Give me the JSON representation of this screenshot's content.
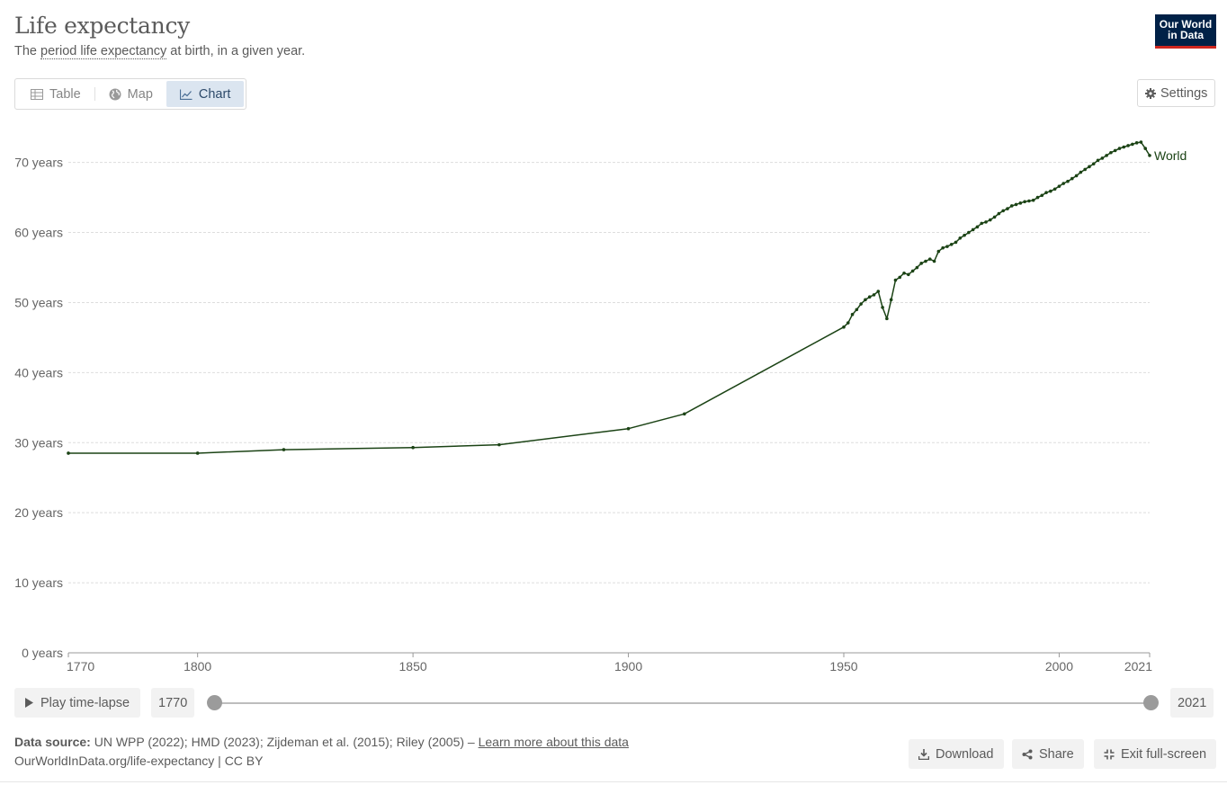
{
  "header": {
    "title": "Life expectancy",
    "subtitle_pre": "The ",
    "subtitle_link": "period life expectancy",
    "subtitle_post": " at birth, in a given year.",
    "logo_line1": "Our World",
    "logo_line2": "in Data"
  },
  "tabs": [
    {
      "label": "Table",
      "icon": "table-icon"
    },
    {
      "label": "Map",
      "icon": "globe-icon"
    },
    {
      "label": "Chart",
      "icon": "line-chart-icon",
      "active": true
    }
  ],
  "settings_label": "Settings",
  "timeline": {
    "play_label": "Play time-lapse",
    "start_year": "1770",
    "end_year": "2021",
    "start_position": 0,
    "end_position": 1
  },
  "footer": {
    "source_label": "Data source:",
    "source_text": " UN WPP (2022); HMD (2023); Zijdeman et al. (2015); Riley (2005) – ",
    "learn_more": "Learn more about this data",
    "url_license": "OurWorldInData.org/life-expectancy | CC BY"
  },
  "actions": {
    "download": "Download",
    "share": "Share",
    "exit_fullscreen": "Exit full-screen"
  },
  "colors": {
    "line": "#1b4315",
    "accent_blue": "#002147",
    "accent_red": "#ce261e",
    "tab_active_bg": "#dbe5f0",
    "grid": "#dddddd"
  },
  "chart_data": {
    "type": "line",
    "title": "Life expectancy",
    "ylim": [
      0,
      75
    ],
    "xlim": [
      1770,
      2021
    ],
    "y_ticks": [
      0,
      10,
      20,
      30,
      40,
      50,
      60,
      70
    ],
    "y_tick_labels": [
      "0 years",
      "10 years",
      "20 years",
      "30 years",
      "40 years",
      "50 years",
      "60 years",
      "70 years"
    ],
    "x_ticks": [
      1770,
      1800,
      1850,
      1900,
      1950,
      2000,
      2021
    ],
    "x_tick_labels": [
      "1770",
      "1800",
      "1850",
      "1900",
      "1950",
      "2000",
      "2021"
    ],
    "grid": true,
    "legend": "end-of-line label",
    "series": [
      {
        "name": "World",
        "x": [
          1770,
          1800,
          1820,
          1850,
          1870,
          1900,
          1913,
          1950,
          1951,
          1952,
          1953,
          1954,
          1955,
          1956,
          1957,
          1958,
          1959,
          1960,
          1961,
          1962,
          1963,
          1964,
          1965,
          1966,
          1967,
          1968,
          1969,
          1970,
          1971,
          1972,
          1973,
          1974,
          1975,
          1976,
          1977,
          1978,
          1979,
          1980,
          1981,
          1982,
          1983,
          1984,
          1985,
          1986,
          1987,
          1988,
          1989,
          1990,
          1991,
          1992,
          1993,
          1994,
          1995,
          1996,
          1997,
          1998,
          1999,
          2000,
          2001,
          2002,
          2003,
          2004,
          2005,
          2006,
          2007,
          2008,
          2009,
          2010,
          2011,
          2012,
          2013,
          2014,
          2015,
          2016,
          2017,
          2018,
          2019,
          2020,
          2021
        ],
        "values": [
          28.5,
          28.5,
          29.0,
          29.3,
          29.7,
          32.0,
          34.1,
          46.5,
          47.1,
          48.3,
          49.0,
          49.8,
          50.4,
          50.8,
          51.1,
          51.6,
          49.3,
          47.7,
          50.4,
          53.2,
          53.6,
          54.2,
          54.0,
          54.5,
          55.0,
          55.6,
          55.9,
          56.2,
          55.9,
          57.3,
          57.8,
          58.0,
          58.3,
          58.6,
          59.2,
          59.6,
          60.0,
          60.4,
          60.8,
          61.3,
          61.5,
          61.8,
          62.2,
          62.7,
          63.1,
          63.4,
          63.8,
          64.0,
          64.2,
          64.4,
          64.5,
          64.6,
          65.0,
          65.3,
          65.7,
          65.9,
          66.2,
          66.6,
          67.0,
          67.3,
          67.7,
          68.1,
          68.6,
          69.0,
          69.4,
          69.8,
          70.3,
          70.6,
          71.0,
          71.4,
          71.7,
          72.0,
          72.2,
          72.4,
          72.6,
          72.8,
          72.9,
          72.0,
          71.0
        ]
      }
    ]
  }
}
